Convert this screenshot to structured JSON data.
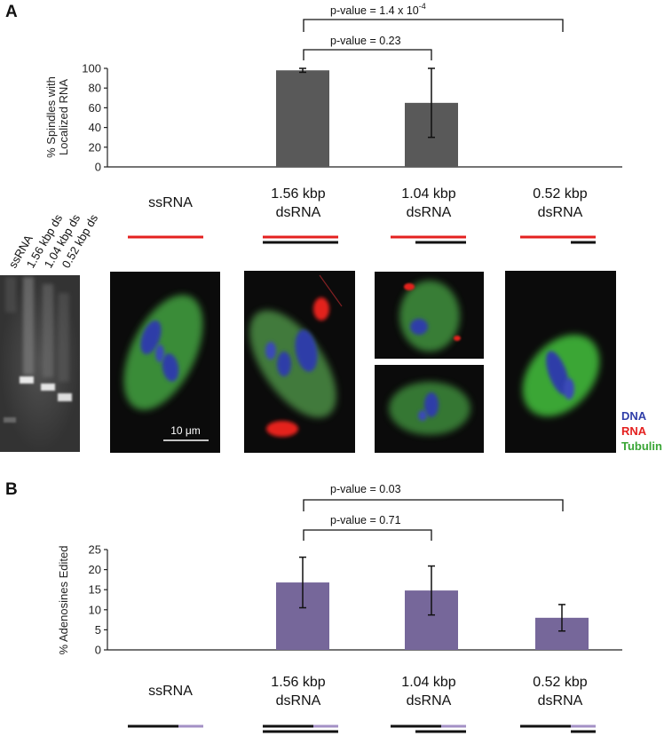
{
  "panel_a": {
    "letter": "A",
    "pvalue_top": "p-value = 1.4 x 10",
    "pvalue_top_exp": "-4",
    "pvalue_inner": "p-value = 0.23",
    "ylabel_line1": "% Spindles with",
    "ylabel_line2": "Localized RNA"
  },
  "panel_b": {
    "letter": "B",
    "pvalue_top": "p-value = 0.03",
    "pvalue_inner": "p-value = 0.71",
    "ylabel": "% Adenosines Edited"
  },
  "categories": [
    {
      "line1": "ssRNA",
      "line2": ""
    },
    {
      "line1": "1.56 kbp",
      "line2": "dsRNA"
    },
    {
      "line1": "1.04 kbp",
      "line2": "dsRNA"
    },
    {
      "line1": "0.52 kbp",
      "line2": "dsRNA"
    }
  ],
  "gel_lanes": [
    "ssRNA",
    "1.56 kbp ds",
    "1.04 kbp ds",
    "0.52 kbp ds"
  ],
  "legend": {
    "dna": "DNA",
    "rna": "RNA",
    "tubulin": "Tubulin"
  },
  "scale_bar_label": "10 μm",
  "colors": {
    "bar_a": "#595959",
    "bar_b": "#76679a",
    "rna_red": "#e4201f",
    "dna_blue": "#2f3ea8",
    "tubulin_green": "#3aa636",
    "edit_purple": "#a390c5"
  },
  "chart_data": [
    {
      "type": "bar",
      "categories": [
        "ssRNA",
        "1.56 kbp dsRNA",
        "1.04 kbp dsRNA",
        "0.52 kbp dsRNA"
      ],
      "values": [
        null,
        98,
        65,
        null
      ],
      "errors": [
        null,
        2,
        35,
        null
      ],
      "ylim": [
        0,
        100
      ],
      "yticks": [
        0,
        20,
        40,
        60,
        80,
        100
      ],
      "ylabel": "% Spindles with Localized RNA"
    },
    {
      "type": "bar",
      "categories": [
        "ssRNA",
        "1.56 kbp dsRNA",
        "1.04 kbp dsRNA",
        "0.52 kbp dsRNA"
      ],
      "values": [
        null,
        16.8,
        14.8,
        8
      ],
      "errors": [
        null,
        6.3,
        6.1,
        3.3
      ],
      "ylim": [
        0,
        25
      ],
      "yticks": [
        0,
        5,
        10,
        15,
        20,
        25
      ],
      "ylabel": "% Adenosines Edited"
    }
  ]
}
